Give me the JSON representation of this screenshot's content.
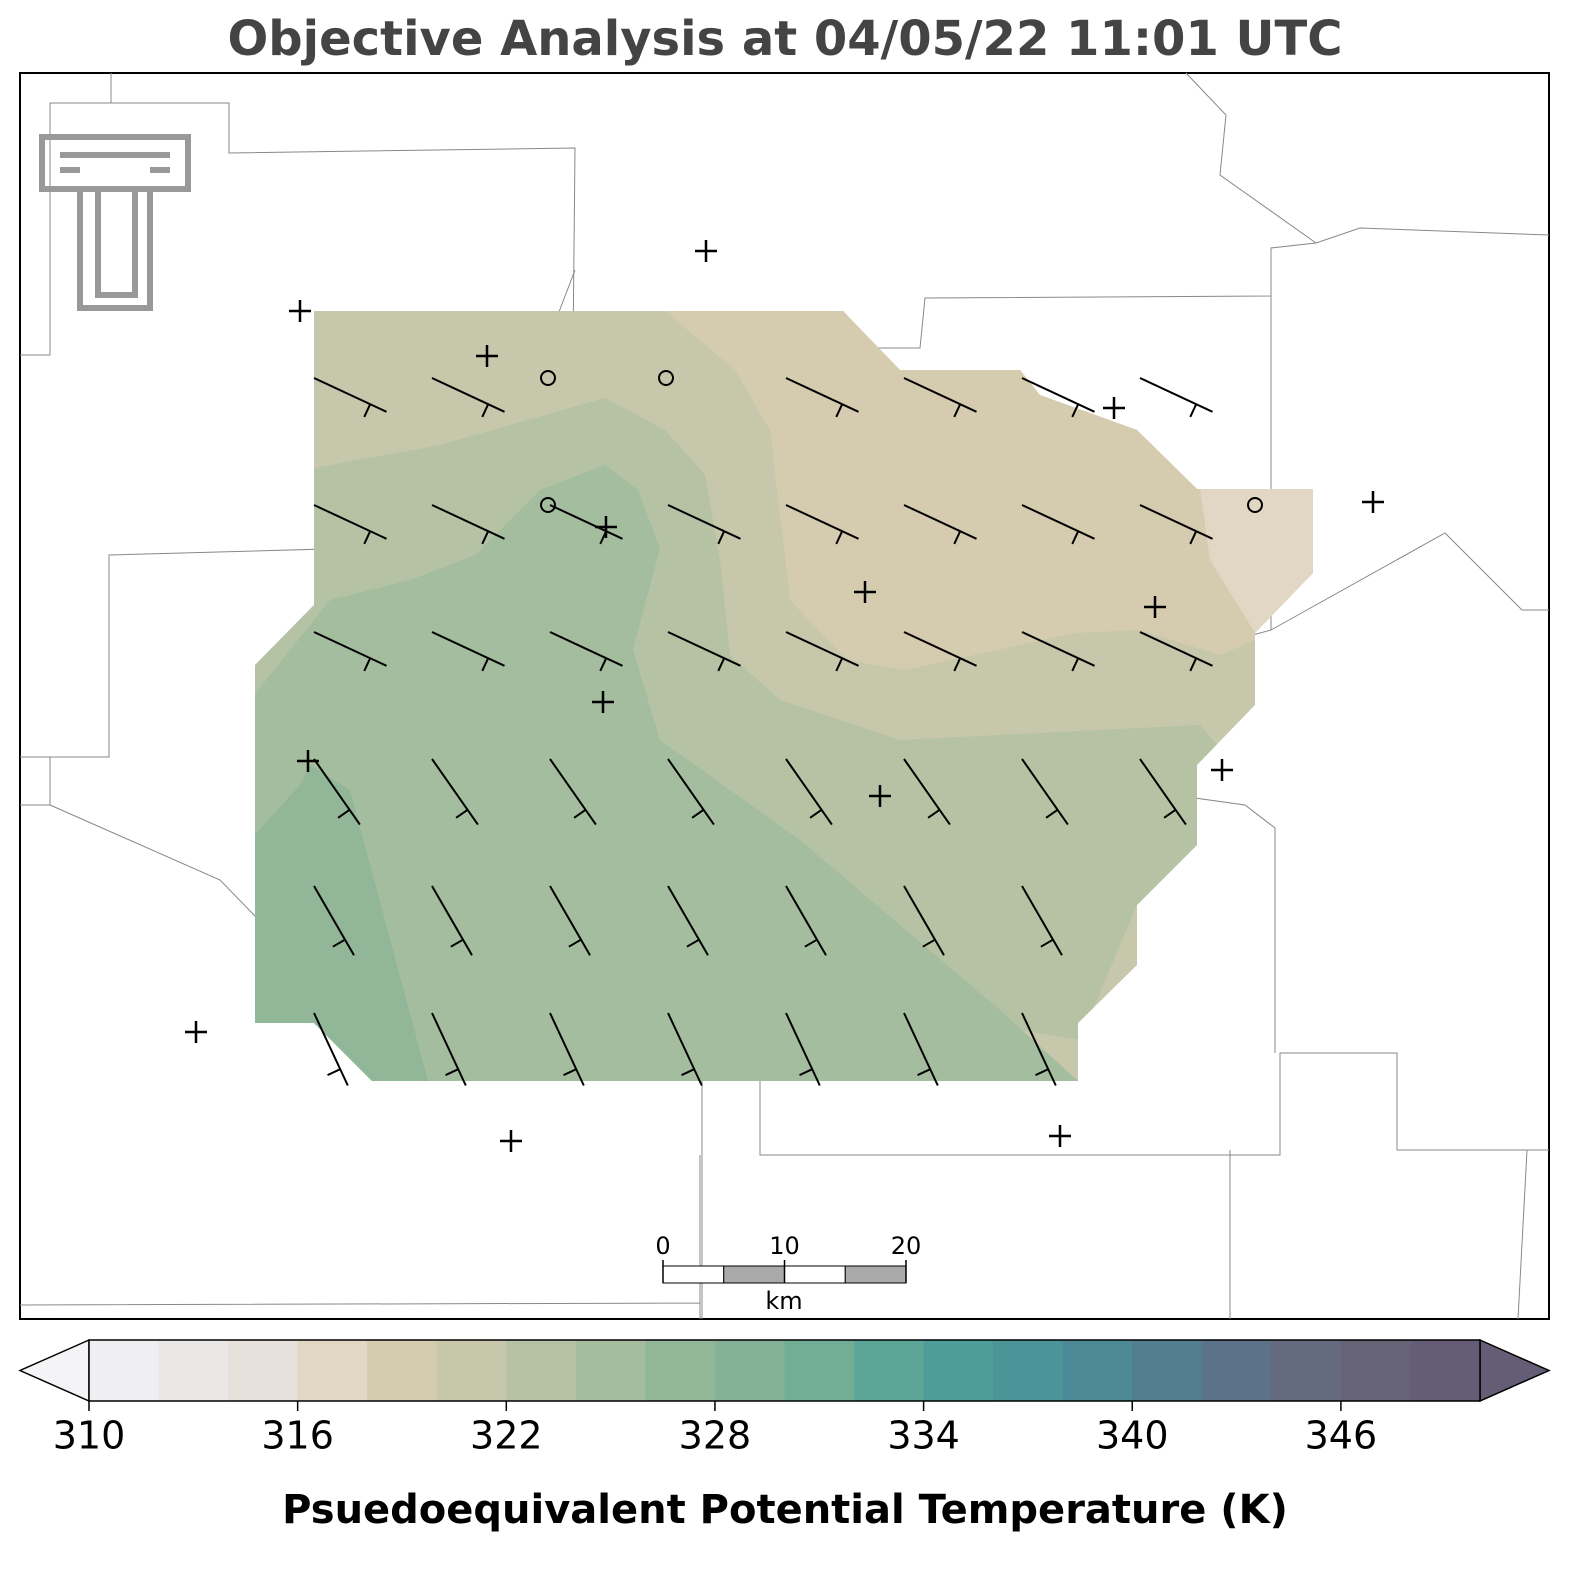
{
  "title": "Objective Analysis at 04/05/22 11:01 UTC",
  "scale_bar": {
    "ticks": [
      0,
      10,
      20
    ],
    "unit": "km",
    "range": [
      0,
      20
    ]
  },
  "colorbar": {
    "label": "Psuedoequivalent Potential Temperature (K)",
    "range": [
      310,
      350
    ],
    "ticks": [
      310,
      316,
      322,
      328,
      334,
      340,
      346
    ],
    "colors": [
      "#efeef1",
      "#ebe7e6",
      "#e6e0da",
      "#e2d6c4",
      "#d5ccb0",
      "#c6c7ab",
      "#b5c3a4",
      "#a4bd9e",
      "#92b698",
      "#84b296",
      "#72ad95",
      "#5da697",
      "#4f9d98",
      "#4b9598",
      "#4d8996",
      "#537d91",
      "#5c7289",
      "#646a80",
      "#666377",
      "#655d75"
    ],
    "extend_colors": [
      "#f4f3f6",
      "#655d75"
    ]
  }
}
